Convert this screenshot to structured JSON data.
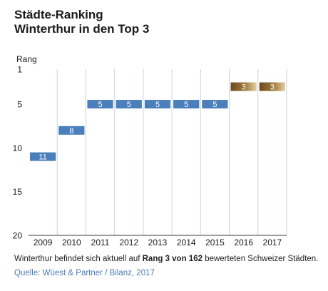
{
  "header": {
    "title_line1": "Städte-Ranking",
    "title_line2": "Winterthur in den Top 3"
  },
  "chart_data": {
    "type": "bar",
    "ylabel": "Rang",
    "y_reversed": true,
    "ylim": [
      1,
      20
    ],
    "yticks": [
      1,
      5,
      10,
      15,
      20
    ],
    "grid": "vertical",
    "categories": [
      "2009",
      "2010",
      "2011",
      "2012",
      "2013",
      "2014",
      "2015",
      "2016",
      "2017"
    ],
    "values": [
      11,
      8,
      5,
      5,
      5,
      5,
      5,
      3,
      3
    ],
    "data_labels": [
      "11",
      "8",
      "5",
      "5",
      "5",
      "5",
      "5",
      "3",
      "3"
    ],
    "colors": {
      "default_bar": "#4a7fbb",
      "highlight_bar_dark": "#6b4a1e",
      "highlight_bar_light": "#e2cfa3",
      "grid": "#c8d2e6",
      "axis": "#3a3a3a"
    },
    "highlight_categories": [
      "2016",
      "2017"
    ]
  },
  "footer": {
    "note_before": "Winterthur befindet sich aktuell auf ",
    "note_bold": "Rang 3 von 162",
    "note_after": " bewerteten Schweizer Städten.",
    "source": "Quelle: Wüest & Partner / Bilanz, 2017"
  }
}
